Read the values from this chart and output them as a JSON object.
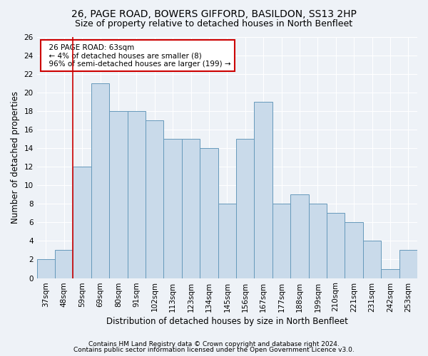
{
  "title1": "26, PAGE ROAD, BOWERS GIFFORD, BASILDON, SS13 2HP",
  "title2": "Size of property relative to detached houses in North Benfleet",
  "xlabel": "Distribution of detached houses by size in North Benfleet",
  "ylabel": "Number of detached properties",
  "categories": [
    "37sqm",
    "48sqm",
    "59sqm",
    "69sqm",
    "80sqm",
    "91sqm",
    "102sqm",
    "113sqm",
    "123sqm",
    "134sqm",
    "145sqm",
    "156sqm",
    "167sqm",
    "177sqm",
    "188sqm",
    "199sqm",
    "210sqm",
    "221sqm",
    "231sqm",
    "242sqm",
    "253sqm"
  ],
  "values": [
    2,
    3,
    12,
    21,
    18,
    18,
    17,
    15,
    15,
    14,
    8,
    15,
    19,
    8,
    9,
    8,
    7,
    6,
    4,
    1,
    3
  ],
  "bar_color": "#c9daea",
  "bar_edge_color": "#6699bb",
  "annotation_text": "  26 PAGE ROAD: 63sqm\n  ← 4% of detached houses are smaller (8)\n  96% of semi-detached houses are larger (199) →",
  "annotation_box_color": "#ffffff",
  "annotation_box_edge_color": "#cc0000",
  "vline_color": "#cc0000",
  "ylim": [
    0,
    26
  ],
  "yticks": [
    0,
    2,
    4,
    6,
    8,
    10,
    12,
    14,
    16,
    18,
    20,
    22,
    24,
    26
  ],
  "footer1": "Contains HM Land Registry data © Crown copyright and database right 2024.",
  "footer2": "Contains public sector information licensed under the Open Government Licence v3.0.",
  "bg_color": "#eef2f7",
  "plot_bg_color": "#eef2f7",
  "grid_color": "#ffffff",
  "title_fontsize": 10,
  "subtitle_fontsize": 9,
  "axis_label_fontsize": 8.5,
  "tick_fontsize": 7.5,
  "annotation_fontsize": 7.5,
  "footer_fontsize": 6.5
}
